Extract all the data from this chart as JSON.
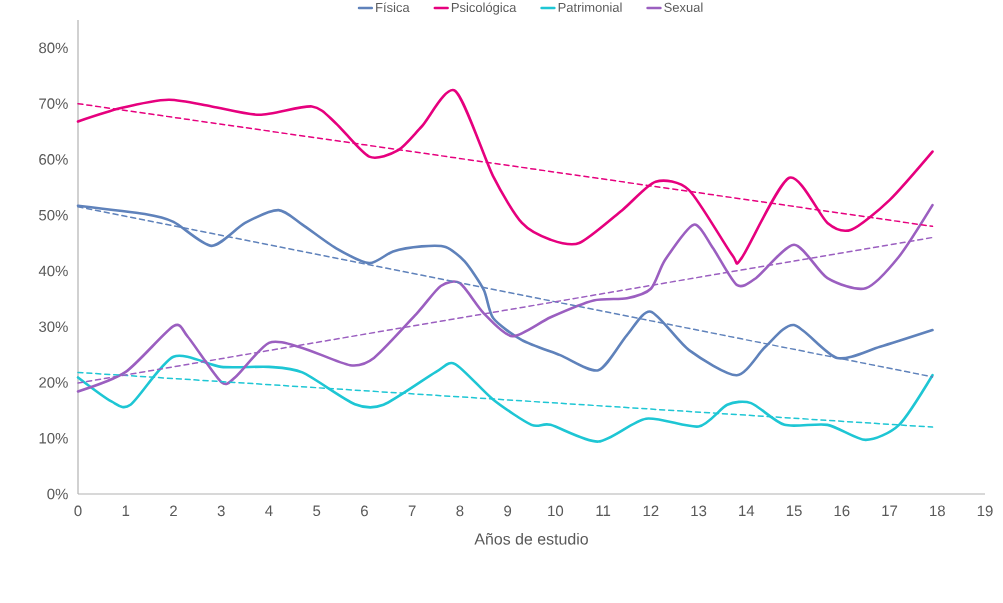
{
  "chart_data": {
    "type": "line",
    "xlabel": "Años de estudio",
    "xlim": [
      0,
      19
    ],
    "xticks": [
      0,
      1,
      2,
      3,
      4,
      5,
      6,
      7,
      8,
      9,
      10,
      11,
      12,
      13,
      14,
      15,
      16,
      17,
      18,
      19
    ],
    "ylim": [
      0,
      85
    ],
    "yticks": [
      {
        "value": 0,
        "label": "0%"
      },
      {
        "value": 10,
        "label": "10%"
      },
      {
        "value": 20,
        "label": "20%"
      },
      {
        "value": 30,
        "label": "30%"
      },
      {
        "value": 40,
        "label": "40%"
      },
      {
        "value": 50,
        "label": "50%"
      },
      {
        "value": 60,
        "label": "60%"
      },
      {
        "value": 70,
        "label": "70%"
      },
      {
        "value": 80,
        "label": "80%"
      }
    ],
    "grid": false,
    "legend": "top",
    "line_style": "solid",
    "series": [
      {
        "name": "Física",
        "color": "#5f82bb",
        "x": [
          0,
          1.4,
          2,
          2.8,
          3.5,
          4.2,
          4.7,
          5.4,
          6.1,
          6.6,
          7.2,
          7.7,
          8.1,
          8.5,
          8.7,
          9.3,
          10.1,
          10.9,
          11.5,
          12,
          12.8,
          13.8,
          14.4,
          15,
          15.9,
          16.8,
          17.9
        ],
        "values": [
          51.7,
          50.2,
          48.8,
          44.5,
          48.6,
          50.9,
          48.3,
          44.1,
          41.4,
          43.5,
          44.4,
          44.3,
          41.7,
          36.6,
          31.5,
          27.6,
          24.9,
          22.2,
          28.5,
          32.7,
          25.8,
          21.3,
          26.4,
          30.3,
          24.4,
          26.4,
          29.4
        ]
      },
      {
        "name": "Psicológica",
        "color": "#e6007e",
        "x": [
          0,
          0.9,
          1.9,
          2.8,
          3.8,
          4.9,
          5.4,
          6.1,
          6.7,
          7.2,
          7.9,
          8.7,
          9.3,
          9.9,
          10.5,
          11.4,
          12.1,
          12.8,
          13.7,
          13.9,
          14.9,
          15.7,
          16.2,
          17,
          17.9
        ],
        "values": [
          66.8,
          69.2,
          70.7,
          69.5,
          68.0,
          69.5,
          66.5,
          60.5,
          61.6,
          65.9,
          72.3,
          56.9,
          48.6,
          45.6,
          45.0,
          50.9,
          56.0,
          54.5,
          42.9,
          42.3,
          56.7,
          48.6,
          47.4,
          52.7,
          61.4
        ]
      },
      {
        "name": "Patrimonial",
        "color": "#1ec6d4",
        "x": [
          0,
          0.7,
          1.1,
          2,
          3,
          4,
          4.7,
          5.8,
          6.4,
          7.5,
          7.9,
          8.7,
          9.5,
          9.9,
          10.9,
          11.9,
          13,
          13.6,
          14.1,
          14.8,
          15.7,
          16.5,
          17.2,
          17.9
        ],
        "values": [
          20.9,
          16.6,
          16.0,
          24.6,
          22.8,
          22.8,
          21.8,
          16.1,
          16.0,
          21.9,
          23.3,
          16.9,
          12.4,
          12.4,
          9.4,
          13.5,
          12.1,
          16.0,
          16.3,
          12.4,
          12.4,
          9.7,
          12.4,
          21.3
        ]
      },
      {
        "name": "Sexual",
        "color": "#9b5fc0",
        "x": [
          0,
          1,
          2,
          2.3,
          3,
          3.3,
          4,
          4.7,
          5.7,
          6.2,
          7.1,
          7.6,
          8,
          8.5,
          9.1,
          9.9,
          10.8,
          11.5,
          12,
          12.3,
          12.9,
          13.3,
          13.8,
          14.2,
          15,
          15.7,
          16.5,
          17.2,
          17.9
        ],
        "values": [
          18.4,
          21.9,
          30.1,
          28.2,
          20.1,
          21.0,
          27.1,
          26.2,
          23.1,
          24.4,
          32.4,
          37.3,
          37.8,
          32.4,
          28.3,
          31.7,
          34.7,
          35.1,
          36.8,
          42.0,
          48.3,
          44.1,
          37.5,
          38.7,
          44.7,
          38.7,
          36.9,
          42.6,
          51.8
        ]
      },
      {
        "type": "line",
        "line_style": "dashed",
        "color": "#5f82bb",
        "x": [
          0,
          17.9
        ],
        "values": [
          51.5,
          21
        ]
      },
      {
        "type": "line",
        "line_style": "dashed",
        "color": "#e6007e",
        "x": [
          0,
          17.9
        ],
        "values": [
          70,
          48
        ]
      },
      {
        "type": "line",
        "line_style": "dashed",
        "color": "#1ec6d4",
        "x": [
          0,
          17.9
        ],
        "values": [
          21.8,
          12
        ]
      },
      {
        "type": "line",
        "line_style": "dashed",
        "color": "#9b5fc0",
        "x": [
          0,
          17.9
        ],
        "values": [
          19.9,
          46
        ]
      }
    ]
  }
}
